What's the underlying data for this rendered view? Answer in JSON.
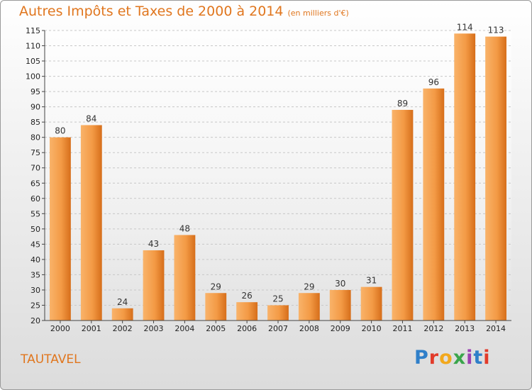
{
  "title": "Autres Impôts et Taxes de 2000 à 2014",
  "subtitle": "(en milliers d'€)",
  "commune": "TAUTAVEL",
  "logo": {
    "text": "Proxiti",
    "colors": [
      "#2f7fc9",
      "#e23b2a",
      "#f2a81d",
      "#3aa54b",
      "#9b3fb2",
      "#2f7fc9",
      "#e23b2a"
    ]
  },
  "colors": {
    "accent": "#e0761e",
    "bar_light": "#f7a45a",
    "bar_dark": "#d96f1b"
  },
  "chart_data": {
    "type": "bar",
    "title": "Autres Impôts et Taxes de 2000 à 2014",
    "subtitle": "(en milliers d'€)",
    "categories": [
      "2000",
      "2001",
      "2002",
      "2003",
      "2004",
      "2005",
      "2006",
      "2007",
      "2008",
      "2009",
      "2010",
      "2011",
      "2012",
      "2013",
      "2014"
    ],
    "values": [
      80,
      84,
      24,
      43,
      48,
      29,
      26,
      25,
      29,
      30,
      31,
      89,
      96,
      114,
      113
    ],
    "ylim": [
      20,
      115
    ],
    "yticks": [
      20,
      25,
      30,
      35,
      40,
      45,
      50,
      55,
      60,
      65,
      70,
      75,
      80,
      85,
      90,
      95,
      100,
      105,
      110,
      115
    ],
    "grid": true,
    "xlabel": "",
    "ylabel": ""
  }
}
